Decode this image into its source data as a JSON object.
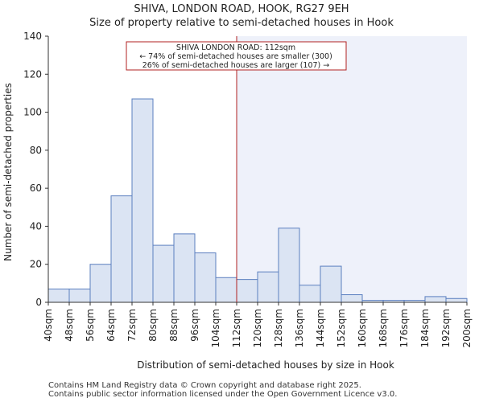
{
  "chart_data": {
    "type": "bar",
    "title": "SHIVA, LONDON ROAD, HOOK, RG27 9EH",
    "subtitle": "Size of property relative to semi-detached houses in Hook",
    "xlabel": "Distribution of semi-detached houses by size in Hook",
    "ylabel": "Number of semi-detached properties",
    "ylim": [
      0,
      140
    ],
    "yticks": [
      0,
      20,
      40,
      60,
      80,
      100,
      120,
      140
    ],
    "xlim": [
      40,
      200
    ],
    "bin_edges": [
      40,
      48,
      56,
      64,
      72,
      80,
      88,
      96,
      104,
      112,
      120,
      128,
      136,
      144,
      152,
      160,
      168,
      176,
      184,
      192,
      200
    ],
    "tick_labels": [
      "40sqm",
      "48sqm",
      "56sqm",
      "64sqm",
      "72sqm",
      "80sqm",
      "88sqm",
      "96sqm",
      "104sqm",
      "112sqm",
      "120sqm",
      "128sqm",
      "136sqm",
      "144sqm",
      "152sqm",
      "160sqm",
      "168sqm",
      "176sqm",
      "184sqm",
      "192sqm",
      "200sqm"
    ],
    "values": [
      7,
      7,
      20,
      56,
      107,
      30,
      36,
      26,
      13,
      12,
      16,
      39,
      9,
      19,
      4,
      1,
      1,
      1,
      3,
      2
    ],
    "marker_value": 112,
    "annotation": {
      "line1": "SHIVA LONDON ROAD: 112sqm",
      "line2": "← 74% of semi-detached houses are smaller (300)",
      "line3": "26% of semi-detached houses are larger (107) →"
    },
    "bar_color": "#dbe4f3",
    "bar_edge_color": "#5b7fbf",
    "highlight_color": "#eef1fa",
    "marker_color": "#b22222"
  },
  "footer": {
    "line1": "Contains HM Land Registry data © Crown copyright and database right 2025.",
    "line2": "Contains public sector information licensed under the Open Government Licence v3.0."
  }
}
